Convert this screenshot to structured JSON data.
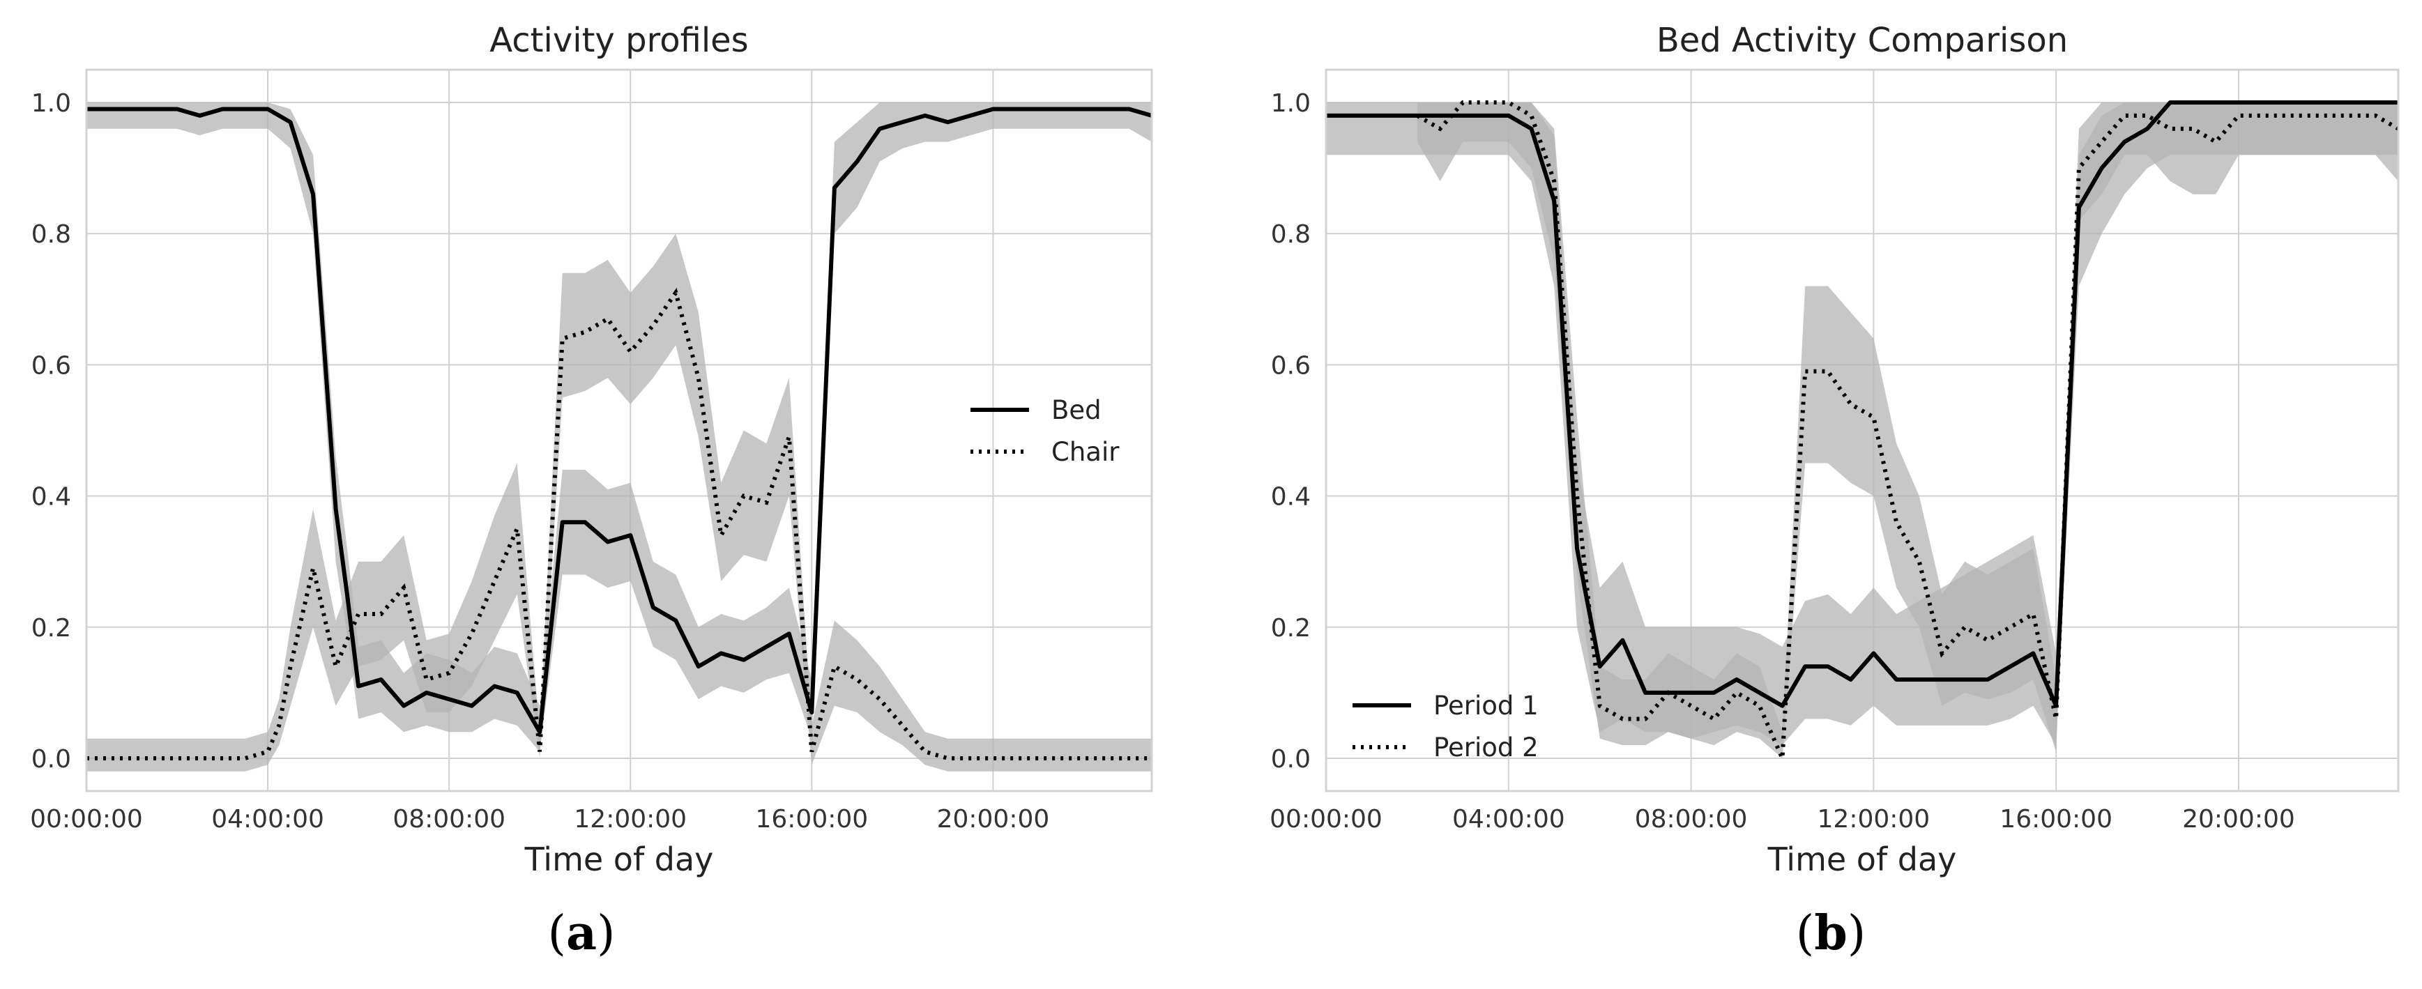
{
  "chart_data": [
    {
      "type": "line",
      "panel_label": "a",
      "title": "Activity profiles",
      "xlabel": "Time of day",
      "ylabel": "",
      "x_unit": "hours",
      "xlim": [
        0,
        23.5
      ],
      "ylim": [
        -0.05,
        1.05
      ],
      "x_tick_values": [
        0,
        4,
        8,
        12,
        16,
        20
      ],
      "x_tick_labels": [
        "00:00:00",
        "04:00:00",
        "08:00:00",
        "12:00:00",
        "16:00:00",
        "20:00:00"
      ],
      "y_tick_values": [
        0.0,
        0.2,
        0.4,
        0.6,
        0.8,
        1.0
      ],
      "y_tick_labels": [
        "0.0",
        "0.2",
        "0.4",
        "0.6",
        "0.8",
        "1.0"
      ],
      "grid": true,
      "legend_position": "right",
      "series": [
        {
          "name": "Bed",
          "style": "solid",
          "x": [
            0,
            1.5,
            2,
            2.5,
            3,
            4,
            4.5,
            5,
            5.5,
            5.75,
            6,
            6.5,
            7,
            7.5,
            8,
            8.5,
            9,
            9.5,
            10,
            10.5,
            11,
            11.5,
            12,
            12.5,
            13,
            13.5,
            14,
            14.5,
            15,
            15.5,
            16,
            16.5,
            17,
            17.5,
            18,
            18.5,
            19,
            19.5,
            20,
            20.5,
            21,
            21.5,
            22,
            22.5,
            23,
            23.5
          ],
          "y": [
            0.99,
            0.99,
            0.99,
            0.98,
            0.99,
            0.99,
            0.97,
            0.86,
            0.38,
            0.25,
            0.11,
            0.12,
            0.08,
            0.1,
            0.09,
            0.08,
            0.11,
            0.1,
            0.04,
            0.36,
            0.36,
            0.33,
            0.34,
            0.23,
            0.21,
            0.14,
            0.16,
            0.15,
            0.17,
            0.19,
            0.07,
            0.87,
            0.91,
            0.96,
            0.97,
            0.98,
            0.97,
            0.98,
            0.99,
            0.99,
            0.99,
            0.99,
            0.99,
            0.99,
            0.99,
            0.98
          ],
          "band_low": [
            0.96,
            0.96,
            0.96,
            0.95,
            0.96,
            0.96,
            0.93,
            0.8,
            0.3,
            0.19,
            0.06,
            0.07,
            0.04,
            0.05,
            0.04,
            0.04,
            0.06,
            0.05,
            0.01,
            0.28,
            0.28,
            0.26,
            0.27,
            0.17,
            0.15,
            0.09,
            0.11,
            0.1,
            0.12,
            0.13,
            0.03,
            0.8,
            0.84,
            0.91,
            0.93,
            0.94,
            0.94,
            0.95,
            0.96,
            0.96,
            0.96,
            0.96,
            0.96,
            0.96,
            0.96,
            0.94
          ],
          "band_high": [
            1.0,
            1.0,
            1.0,
            1.0,
            1.0,
            1.0,
            0.99,
            0.92,
            0.46,
            0.32,
            0.17,
            0.18,
            0.13,
            0.16,
            0.15,
            0.13,
            0.17,
            0.16,
            0.08,
            0.44,
            0.44,
            0.41,
            0.42,
            0.3,
            0.28,
            0.2,
            0.22,
            0.21,
            0.23,
            0.26,
            0.12,
            0.94,
            0.97,
            1.0,
            1.0,
            1.0,
            1.0,
            1.0,
            1.0,
            1.0,
            1.0,
            1.0,
            1.0,
            1.0,
            1.0,
            1.0
          ]
        },
        {
          "name": "Chair",
          "style": "dotted",
          "x": [
            0,
            1,
            2,
            3,
            3.5,
            4,
            4.25,
            4.5,
            5,
            5.5,
            6,
            6.5,
            7,
            7.5,
            8,
            8.5,
            9,
            9.5,
            10,
            10.5,
            11,
            11.5,
            12,
            12.5,
            13,
            13.5,
            14,
            14.5,
            15,
            15.5,
            16,
            16.5,
            17,
            17.5,
            18,
            18.5,
            19,
            20,
            21,
            22,
            23,
            23.5
          ],
          "y": [
            0.0,
            0.0,
            0.0,
            0.0,
            0.0,
            0.01,
            0.05,
            0.14,
            0.29,
            0.14,
            0.22,
            0.22,
            0.26,
            0.12,
            0.13,
            0.19,
            0.27,
            0.35,
            0.01,
            0.64,
            0.65,
            0.67,
            0.62,
            0.66,
            0.71,
            0.58,
            0.34,
            0.4,
            0.39,
            0.49,
            0.01,
            0.14,
            0.12,
            0.09,
            0.05,
            0.01,
            0.0,
            0.0,
            0.0,
            0.0,
            0.0,
            0.0
          ],
          "band_low": [
            -0.02,
            -0.02,
            -0.02,
            -0.02,
            -0.02,
            -0.01,
            0.02,
            0.08,
            0.2,
            0.08,
            0.14,
            0.15,
            0.18,
            0.07,
            0.07,
            0.11,
            0.18,
            0.25,
            0.0,
            0.55,
            0.56,
            0.58,
            0.54,
            0.58,
            0.63,
            0.49,
            0.27,
            0.31,
            0.3,
            0.4,
            -0.01,
            0.08,
            0.07,
            0.04,
            0.02,
            -0.01,
            -0.02,
            -0.02,
            -0.02,
            -0.02,
            -0.02,
            -0.02
          ],
          "band_high": [
            0.03,
            0.03,
            0.03,
            0.03,
            0.03,
            0.04,
            0.09,
            0.2,
            0.38,
            0.21,
            0.3,
            0.3,
            0.34,
            0.18,
            0.19,
            0.27,
            0.37,
            0.45,
            0.04,
            0.74,
            0.74,
            0.76,
            0.71,
            0.75,
            0.8,
            0.68,
            0.42,
            0.5,
            0.48,
            0.58,
            0.05,
            0.21,
            0.18,
            0.14,
            0.09,
            0.04,
            0.03,
            0.03,
            0.03,
            0.03,
            0.03,
            0.03
          ]
        }
      ]
    },
    {
      "type": "line",
      "panel_label": "b",
      "title": "Bed Activity Comparison",
      "xlabel": "Time of day",
      "ylabel": "",
      "x_unit": "hours",
      "xlim": [
        0,
        23.5
      ],
      "ylim": [
        -0.05,
        1.05
      ],
      "x_tick_values": [
        0,
        4,
        8,
        12,
        16,
        20
      ],
      "x_tick_labels": [
        "00:00:00",
        "04:00:00",
        "08:00:00",
        "12:00:00",
        "16:00:00",
        "20:00:00"
      ],
      "y_tick_values": [
        0.0,
        0.2,
        0.4,
        0.6,
        0.8,
        1.0
      ],
      "y_tick_labels": [
        "0.0",
        "0.2",
        "0.4",
        "0.6",
        "0.8",
        "1.0"
      ],
      "grid": true,
      "legend_position": "lower-left",
      "series": [
        {
          "name": "Period 1",
          "style": "solid",
          "x": [
            0,
            1,
            2,
            3,
            4,
            4.5,
            5,
            5.5,
            6,
            6.5,
            7,
            7.5,
            8,
            8.5,
            9,
            9.5,
            10,
            10.5,
            11,
            11.5,
            12,
            12.5,
            13,
            13.5,
            14,
            14.5,
            15,
            15.5,
            16,
            16.5,
            17,
            17.5,
            18,
            18.5,
            19,
            20,
            21,
            22,
            23,
            23.5
          ],
          "y": [
            0.98,
            0.98,
            0.98,
            0.98,
            0.98,
            0.96,
            0.85,
            0.32,
            0.14,
            0.18,
            0.1,
            0.1,
            0.1,
            0.1,
            0.12,
            0.1,
            0.08,
            0.14,
            0.14,
            0.12,
            0.16,
            0.12,
            0.12,
            0.12,
            0.12,
            0.12,
            0.14,
            0.16,
            0.08,
            0.84,
            0.9,
            0.94,
            0.96,
            1.0,
            1.0,
            1.0,
            1.0,
            1.0,
            1.0,
            1.0
          ],
          "band_low": [
            0.92,
            0.92,
            0.92,
            0.92,
            0.92,
            0.88,
            0.72,
            0.2,
            0.04,
            0.06,
            0.04,
            0.04,
            0.03,
            0.04,
            0.05,
            0.04,
            0.02,
            0.06,
            0.06,
            0.05,
            0.08,
            0.05,
            0.05,
            0.05,
            0.05,
            0.05,
            0.06,
            0.08,
            0.02,
            0.72,
            0.8,
            0.86,
            0.9,
            0.92,
            0.92,
            0.92,
            0.92,
            0.92,
            0.92,
            0.92
          ],
          "band_high": [
            1.0,
            1.0,
            1.0,
            1.0,
            1.0,
            1.0,
            0.95,
            0.45,
            0.26,
            0.3,
            0.2,
            0.2,
            0.2,
            0.2,
            0.2,
            0.19,
            0.17,
            0.24,
            0.25,
            0.22,
            0.26,
            0.22,
            0.24,
            0.26,
            0.28,
            0.3,
            0.32,
            0.34,
            0.16,
            0.92,
            0.98,
            1.0,
            1.0,
            1.0,
            1.0,
            1.0,
            1.0,
            1.0,
            1.0,
            1.0
          ]
        },
        {
          "name": "Period 2",
          "style": "dotted",
          "x": [
            2,
            2.5,
            3,
            3.5,
            4,
            4.5,
            5,
            5.5,
            6,
            6.5,
            7,
            7.5,
            8,
            8.5,
            9,
            9.5,
            10,
            10.5,
            11,
            11.5,
            12,
            12.5,
            13,
            13.5,
            14,
            14.5,
            15,
            15.5,
            16,
            16.5,
            17,
            17.5,
            18,
            18.5,
            19,
            19.5,
            20,
            21,
            22,
            23,
            23.5
          ],
          "y": [
            0.98,
            0.96,
            1.0,
            1.0,
            1.0,
            0.98,
            0.88,
            0.4,
            0.08,
            0.06,
            0.06,
            0.1,
            0.08,
            0.06,
            0.1,
            0.08,
            0.0,
            0.59,
            0.59,
            0.54,
            0.52,
            0.36,
            0.3,
            0.16,
            0.2,
            0.18,
            0.2,
            0.22,
            0.06,
            0.9,
            0.94,
            0.98,
            0.98,
            0.96,
            0.96,
            0.94,
            0.98,
            0.98,
            0.98,
            0.98,
            0.96
          ],
          "band_low": [
            0.94,
            0.88,
            0.94,
            0.94,
            0.94,
            0.9,
            0.76,
            0.28,
            0.03,
            0.02,
            0.02,
            0.04,
            0.03,
            0.02,
            0.04,
            0.03,
            0.0,
            0.45,
            0.45,
            0.42,
            0.4,
            0.26,
            0.2,
            0.08,
            0.1,
            0.09,
            0.1,
            0.12,
            0.01,
            0.82,
            0.86,
            0.92,
            0.92,
            0.88,
            0.86,
            0.86,
            0.92,
            0.92,
            0.92,
            0.92,
            0.88
          ],
          "band_high": [
            1.0,
            1.0,
            1.0,
            1.0,
            1.0,
            1.0,
            0.96,
            0.52,
            0.14,
            0.12,
            0.12,
            0.16,
            0.14,
            0.12,
            0.16,
            0.14,
            0.04,
            0.72,
            0.72,
            0.68,
            0.64,
            0.48,
            0.4,
            0.25,
            0.3,
            0.28,
            0.3,
            0.32,
            0.12,
            0.96,
            1.0,
            1.0,
            1.0,
            1.0,
            1.0,
            1.0,
            1.0,
            1.0,
            1.0,
            1.0,
            1.0
          ]
        }
      ]
    }
  ]
}
